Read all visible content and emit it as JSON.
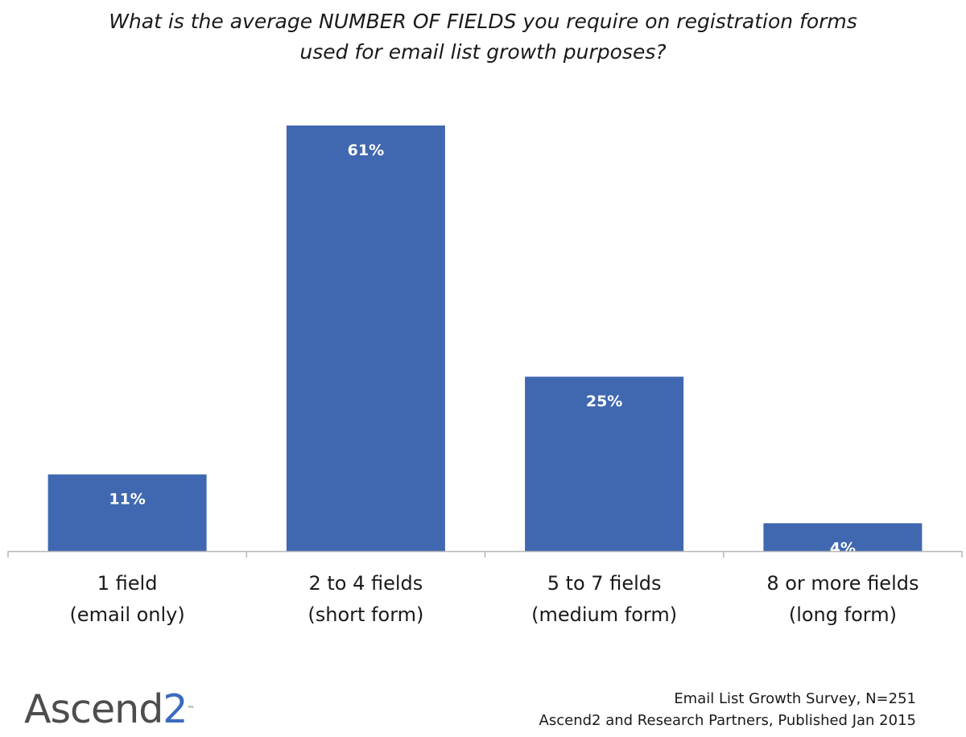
{
  "chart_data": {
    "type": "bar",
    "title": "What is the average NUMBER OF FIELDS you require on registration forms used for email list growth purposes?",
    "title_lines": [
      "What is the average NUMBER OF FIELDS you require on registration forms",
      "used for email list growth purposes?"
    ],
    "categories": [
      [
        "1 field",
        "(email only)"
      ],
      [
        "2 to 4 fields",
        "(short form)"
      ],
      [
        "5 to 7 fields",
        "(medium form)"
      ],
      [
        "8 or more fields",
        "(long form)"
      ]
    ],
    "values": [
      11,
      61,
      25,
      4
    ],
    "value_labels": [
      "11%",
      "61%",
      "25%",
      "4%"
    ],
    "unit": "%",
    "ylim": [
      0,
      61
    ],
    "grid": false,
    "legend": "none",
    "bar_color": "#4068b0",
    "axis_color": "#b7b7b7",
    "label_color": "#ffffff"
  },
  "logo": {
    "text_main": "Ascend",
    "text_digit": "2",
    "tm": "™",
    "main_color": "#4d4d4d",
    "digit_color": "#3a6bc0"
  },
  "source": {
    "line1": "Email List Growth Survey, N=251",
    "line2": "Ascend2 and Research Partners, Published Jan 2015"
  }
}
